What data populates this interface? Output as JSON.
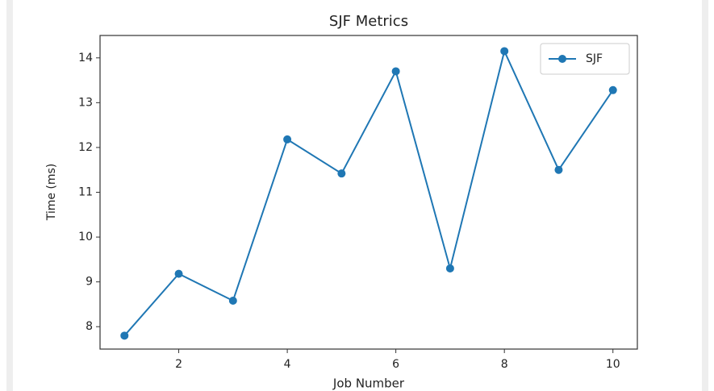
{
  "chart_data": {
    "type": "line",
    "title": "SJF Metrics",
    "xlabel": "Job Number",
    "ylabel": "Time (ms)",
    "x": [
      1,
      2,
      3,
      4,
      5,
      6,
      7,
      8,
      9,
      10
    ],
    "series": [
      {
        "name": "SJF",
        "color": "#1f77b4",
        "values": [
          7.8,
          9.18,
          8.58,
          12.18,
          11.42,
          13.7,
          9.3,
          14.15,
          11.5,
          13.28
        ]
      }
    ],
    "xlim": [
      0.55,
      10.45
    ],
    "ylim": [
      7.5,
      14.5
    ],
    "xticks": [
      2,
      4,
      6,
      8,
      10
    ],
    "yticks": [
      8,
      9,
      10,
      11,
      12,
      13,
      14
    ],
    "legend": "upper right",
    "grid": false
  }
}
